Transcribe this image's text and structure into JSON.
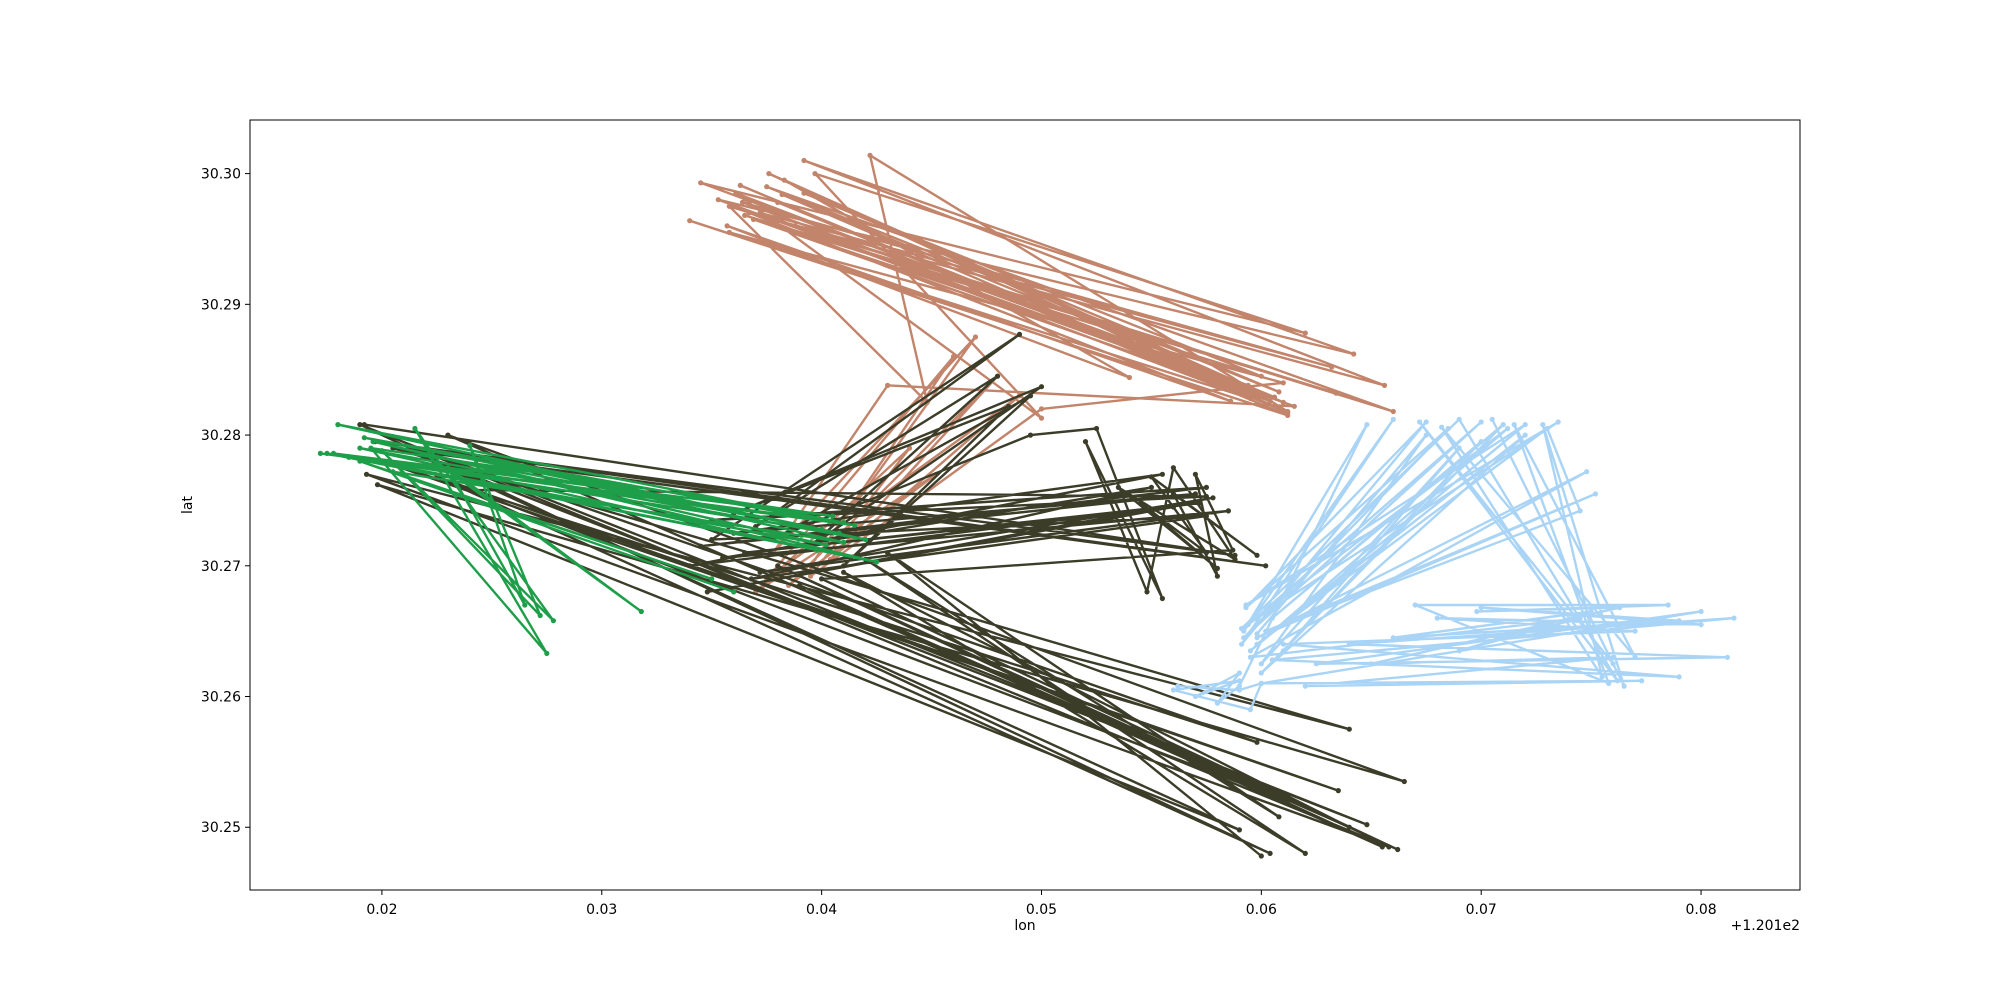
{
  "chart_data": {
    "type": "line",
    "title": "",
    "xlabel": "lon",
    "ylabel": "lat",
    "x_offset_label": "+1.201e2",
    "xlim": [
      0.014,
      0.0845
    ],
    "ylim": [
      30.2452,
      30.3041
    ],
    "x_ticks": [
      0.02,
      0.03,
      0.04,
      0.05,
      0.06,
      0.07,
      0.08
    ],
    "x_tick_labels": [
      "0.02",
      "0.03",
      "0.04",
      "0.05",
      "0.06",
      "0.07",
      "0.08"
    ],
    "y_ticks": [
      30.25,
      30.26,
      30.27,
      30.28,
      30.29,
      30.3
    ],
    "y_tick_labels": [
      "30.25",
      "30.26",
      "30.27",
      "30.28",
      "30.29",
      "30.30"
    ],
    "grid": false,
    "series": [
      {
        "color": "#c2846a",
        "x": [
          0.034,
          0.0612,
          0.0363,
          0.0608,
          0.0376,
          0.06,
          0.0353,
          0.0642,
          0.0392,
          0.0656,
          0.0367,
          0.0586,
          0.0357,
          0.054,
          0.0383,
          0.061,
          0.0361,
          0.05,
          0.0397,
          0.062,
          0.0345,
          0.0594,
          0.0369,
          0.0604,
          0.038,
          0.0612,
          0.0422,
          0.0448,
          0.0358,
          0.066,
          0.0375,
          0.0608,
          0.0392,
          0.06,
          0.0365,
          0.0634,
          0.0388,
          0.0615,
          0.043,
          0.0378,
          0.047,
          0.0395,
          0.046,
          0.0375,
          0.049,
          0.0404,
          0.048,
          0.0385,
          0.0452,
          0.037,
          0.044,
          0.0395,
          0.05,
          0.061,
          0.0358,
          0.0595,
          0.0372,
          0.0632,
          0.0364,
          0.0606,
          0.0382,
          0.0612
        ],
        "y": [
          30.2964,
          30.2815,
          30.2991,
          30.282,
          30.3,
          30.283,
          30.298,
          30.2862,
          30.301,
          30.2838,
          30.297,
          30.2826,
          30.296,
          30.2844,
          30.2995,
          30.2825,
          30.2985,
          30.2813,
          30.3,
          30.2878,
          30.2993,
          30.2838,
          30.2965,
          30.2826,
          30.2978,
          30.2818,
          30.3014,
          30.2825,
          30.2975,
          30.2818,
          30.299,
          30.2833,
          30.2985,
          30.2845,
          30.2968,
          30.2832,
          30.296,
          30.2822,
          30.2838,
          30.271,
          30.2875,
          30.27,
          30.286,
          30.269,
          30.283,
          30.2705,
          30.2845,
          30.2685,
          30.277,
          30.268,
          30.279,
          30.2692,
          30.282,
          30.284,
          30.2955,
          30.2828,
          30.297,
          30.2852,
          30.2978,
          30.2829,
          30.2984,
          30.2817
        ]
      },
      {
        "color": "#3c3d29",
        "x": [
          0.0192,
          0.0588,
          0.0197,
          0.0602,
          0.0205,
          0.064,
          0.0193,
          0.0658,
          0.0215,
          0.0598,
          0.02,
          0.0635,
          0.0225,
          0.0604,
          0.019,
          0.0648,
          0.0212,
          0.059,
          0.0198,
          0.0665,
          0.023,
          0.0612,
          0.024,
          0.0575,
          0.035,
          0.0575,
          0.0345,
          0.057,
          0.036,
          0.0555,
          0.034,
          0.0572,
          0.0365,
          0.056,
          0.0348,
          0.0578,
          0.0372,
          0.0585,
          0.0355,
          0.055,
          0.0368,
          0.0575,
          0.035,
          0.049,
          0.037,
          0.048,
          0.0395,
          0.05,
          0.036,
          0.0485,
          0.041,
          0.0495,
          0.038,
          0.0495,
          0.0525,
          0.0555,
          0.052,
          0.0548,
          0.056,
          0.0588,
          0.0535,
          0.058,
          0.0545,
          0.0575,
          0.055,
          0.0598,
          0.056,
          0.058,
          0.057,
          0.0587,
          0.04,
          0.0662,
          0.038,
          0.0655,
          0.039,
          0.064,
          0.041,
          0.062,
          0.042,
          0.0608,
          0.043,
          0.06
        ],
        "y": [
          30.2808,
          30.2708,
          30.2795,
          30.27,
          30.279,
          30.2575,
          30.277,
          30.2485,
          30.279,
          30.2565,
          30.278,
          30.2528,
          30.2768,
          30.248,
          30.2808,
          30.2502,
          30.2788,
          30.2498,
          30.2762,
          30.2535,
          30.28,
          30.252,
          30.2758,
          30.2753,
          30.2735,
          30.276,
          30.2715,
          30.2755,
          30.2725,
          30.277,
          30.27,
          30.2748,
          30.271,
          30.2745,
          30.268,
          30.2752,
          30.2695,
          30.2742,
          30.2706,
          30.276,
          30.269,
          30.2738,
          30.272,
          30.2877,
          30.273,
          30.2845,
          30.2715,
          30.2837,
          30.274,
          30.2822,
          30.27,
          30.283,
          30.2722,
          30.28,
          30.2805,
          30.2675,
          30.2795,
          30.268,
          30.2775,
          30.2705,
          30.276,
          30.2698,
          30.2748,
          30.271,
          30.2768,
          30.2708,
          30.2755,
          30.2692,
          30.277,
          30.2712,
          30.269,
          30.2483,
          30.27,
          30.2485,
          30.2685,
          30.25,
          30.2695,
          30.248,
          30.2705,
          30.2508,
          30.271,
          30.2478
        ]
      },
      {
        "color": "#1f9e4a",
        "x": [
          0.0172,
          0.041,
          0.018,
          0.042,
          0.019,
          0.0398,
          0.0175,
          0.0408,
          0.0192,
          0.0415,
          0.0185,
          0.0402,
          0.0196,
          0.0425,
          0.0178,
          0.0405,
          0.0195,
          0.0275,
          0.0215,
          0.0278,
          0.02,
          0.0272,
          0.024,
          0.0265,
          0.023,
          0.0318,
          0.022,
          0.04,
          0.025,
          0.041,
          0.0205,
          0.035,
          0.019,
          0.036
        ],
        "y": [
          30.2786,
          30.2733,
          30.2808,
          30.272,
          30.279,
          30.2712,
          30.2786,
          30.2725,
          30.2798,
          30.2731,
          30.2783,
          30.2716,
          30.2795,
          30.2703,
          30.2786,
          30.2738,
          30.279,
          30.2633,
          30.2805,
          30.2658,
          30.2788,
          30.2662,
          30.2792,
          30.267,
          30.2775,
          30.2665,
          30.2785,
          30.2728,
          30.278,
          30.2718,
          30.2772,
          30.269,
          30.278,
          30.268
        ]
      },
      {
        "color": "#a9d4f5",
        "x": [
          0.0562,
          0.059,
          0.06,
          0.0595,
          0.056,
          0.059,
          0.057,
          0.059,
          0.058,
          0.059,
          0.0648,
          0.0592,
          0.066,
          0.0591,
          0.0675,
          0.0593,
          0.0685,
          0.0592,
          0.07,
          0.0594,
          0.0712,
          0.0595,
          0.072,
          0.0593,
          0.0735,
          0.0591,
          0.069,
          0.0762,
          0.0672,
          0.076,
          0.0705,
          0.0765,
          0.0728,
          0.0755,
          0.0682,
          0.077,
          0.0715,
          0.0758,
          0.067,
          0.0785,
          0.0698,
          0.0763,
          0.065,
          0.076,
          0.062,
          0.0773,
          0.06,
          0.08,
          0.0625,
          0.0812,
          0.064,
          0.0815,
          0.0605,
          0.079,
          0.061,
          0.077,
          0.068,
          0.08,
          0.07,
          0.079,
          0.066,
          0.075,
          0.069,
          0.0745,
          0.0595,
          0.0748,
          0.0598,
          0.0752,
          0.0602,
          0.0745,
          0.073,
          0.0598,
          0.072,
          0.06,
          0.071,
          0.0605,
          0.07,
          0.061,
          0.069,
          0.06,
          0.0675,
          0.0598
        ],
        "y": [
          30.2608,
          30.2605,
          30.261,
          30.259,
          30.2605,
          30.2612,
          30.26,
          30.2618,
          30.2595,
          30.2608,
          30.2808,
          30.265,
          30.2812,
          30.264,
          30.281,
          30.2668,
          30.2805,
          30.2645,
          30.281,
          30.2655,
          30.2805,
          30.2635,
          30.2808,
          30.267,
          30.281,
          30.2652,
          30.2812,
          30.2612,
          30.281,
          30.2625,
          30.2812,
          30.2608,
          30.2808,
          30.2615,
          30.2806,
          30.263,
          30.2808,
          30.261,
          30.267,
          30.267,
          30.2665,
          30.2668,
          30.2625,
          30.263,
          30.2608,
          30.2612,
          30.261,
          30.2665,
          30.2625,
          30.263,
          30.264,
          30.266,
          30.2628,
          30.2615,
          30.264,
          30.265,
          30.266,
          30.2655,
          30.2668,
          30.2658,
          30.2645,
          30.2665,
          30.2635,
          30.266,
          30.263,
          30.2772,
          30.2645,
          30.2755,
          30.265,
          30.2742,
          30.2805,
          30.264,
          30.28,
          30.2618,
          30.2808,
          30.266,
          30.2795,
          30.2635,
          30.279,
          30.2625,
          30.28,
          30.2648
        ]
      }
    ]
  }
}
